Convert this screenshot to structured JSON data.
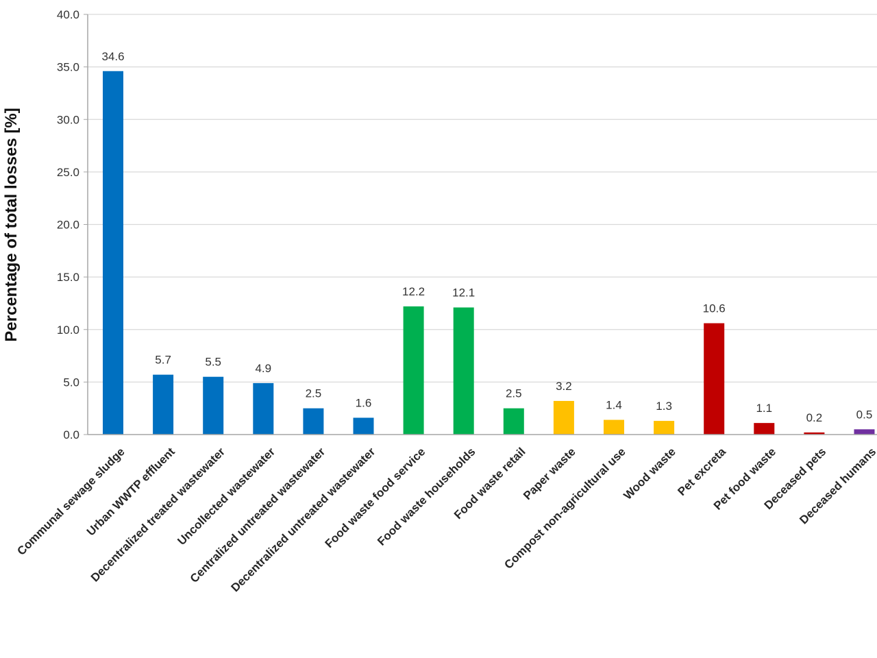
{
  "chart_data": {
    "type": "bar",
    "title": "",
    "xlabel": "",
    "ylabel": "Percentage of total losses [%]",
    "ylim": [
      0,
      40
    ],
    "y_ticks": [
      "0.0",
      "5.0",
      "10.0",
      "15.0",
      "20.0",
      "25.0",
      "30.0",
      "35.0",
      "40.0"
    ],
    "grid": true,
    "categories": [
      "Communal sewage sludge",
      "Urban WWTP effluent",
      "Decentralized treated wastewater",
      "Uncollected wastewater",
      "Centralized untreated wastewater",
      "Decentralized untreated wastewater",
      "Food waste food service",
      "Food waste households",
      "Food waste retail",
      "Paper waste",
      "Compost non-agricultural use",
      "Wood waste",
      "Pet excreta",
      "Pet food waste",
      "Deceased pets",
      "Deceased humans"
    ],
    "values": [
      34.6,
      5.7,
      5.5,
      4.9,
      2.5,
      1.6,
      12.2,
      12.1,
      2.5,
      3.2,
      1.4,
      1.3,
      10.6,
      1.1,
      0.2,
      0.5
    ],
    "value_labels": [
      "34.6",
      "5.7",
      "5.5",
      "4.9",
      "2.5",
      "1.6",
      "12.2",
      "12.1",
      "2.5",
      "3.2",
      "1.4",
      "1.3",
      "10.6",
      "1.1",
      "0.2",
      "0.5"
    ],
    "bar_colors": [
      "#0070C0",
      "#0070C0",
      "#0070C0",
      "#0070C0",
      "#0070C0",
      "#0070C0",
      "#00B050",
      "#00B050",
      "#00B050",
      "#FFC000",
      "#FFC000",
      "#FFC000",
      "#C00000",
      "#C00000",
      "#C00000",
      "#7030A0"
    ]
  },
  "colors": {
    "gridline": "#d9d9d9",
    "axis": "#a6a6a6"
  }
}
